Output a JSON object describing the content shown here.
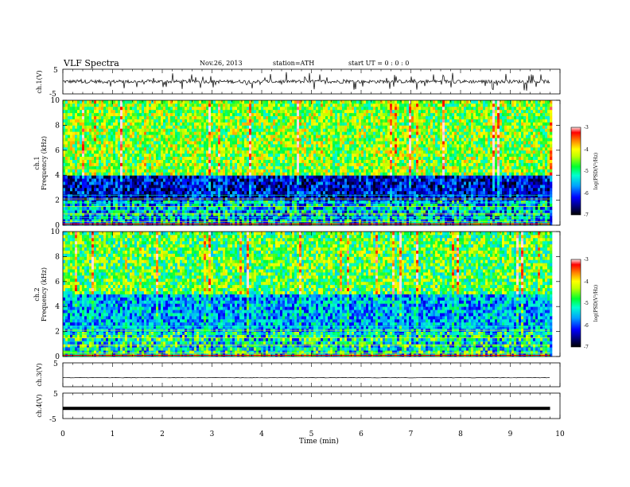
{
  "header": {
    "title": "VLF  Spectra",
    "date": "Nov.26, 2013",
    "station": "station=ATH",
    "start": "start  UT =   0 : 0 : 0"
  },
  "chart_data": [
    {
      "type": "line",
      "panel": "ch1-waveform",
      "ylabel": "ch.1(V)",
      "ylim": [
        -5,
        5
      ],
      "yticks": [
        "5",
        "-5"
      ],
      "xlim": [
        0,
        10
      ],
      "x_extent_min": [
        0,
        9.8
      ],
      "approx_level": 0,
      "noisy": true
    },
    {
      "type": "heatmap",
      "panel": "ch1-spectrogram",
      "ylabel_top": "ch.1",
      "ylabel": "Frequency  (kHz)",
      "ylim": [
        0,
        10
      ],
      "yticks": [
        "0",
        "2",
        "4",
        "6",
        "8",
        "10"
      ],
      "xlim": [
        0,
        10
      ],
      "x_extent_min": [
        0,
        9.8
      ],
      "colorbar": {
        "label": "log(PSD(V²/Hz)",
        "range": [
          -7,
          -3
        ],
        "ticks": [
          "-3",
          "-4",
          "-5",
          "-6",
          "-7"
        ]
      },
      "description_levels": {
        "above_4kHz": -4.5,
        "between_2_4kHz": -6.3,
        "below_2kHz": -5.5
      }
    },
    {
      "type": "heatmap",
      "panel": "ch2-spectrogram",
      "ylabel_top": "ch.2",
      "ylabel": "Frequency  (kHz)",
      "ylim": [
        0,
        10
      ],
      "yticks": [
        "0",
        "2",
        "4",
        "6",
        "8",
        "10"
      ],
      "xlim": [
        0,
        10
      ],
      "x_extent_min": [
        0,
        9.8
      ],
      "colorbar": {
        "label": "log(PSD(V²/Hz)",
        "range": [
          -7,
          -3
        ],
        "ticks": [
          "-3",
          "-4",
          "-5",
          "-6",
          "-7"
        ]
      },
      "description_levels": {
        "above_5kHz": -4.7,
        "between_2_5kHz": -5.6,
        "below_2kHz": -5.2
      }
    },
    {
      "type": "line",
      "panel": "ch3-waveform",
      "ylabel": "ch.3(V)",
      "ylim": [
        -5,
        5
      ],
      "yticks": [
        "5"
      ],
      "xlim": [
        0,
        10
      ],
      "x_extent_min": [
        0,
        9.8
      ],
      "approx_level": -1.2
    },
    {
      "type": "line",
      "panel": "ch4-waveform",
      "ylabel": "ch.4(V)",
      "ylim": [
        -5,
        5
      ],
      "yticks": [
        "5",
        "-5"
      ],
      "xlim": [
        0,
        10
      ],
      "x_extent_min": [
        0,
        9.8
      ],
      "approx_level": -1
    }
  ],
  "xaxis": {
    "label": "Time  (min)",
    "ticks": [
      "0",
      "1",
      "2",
      "3",
      "4",
      "5",
      "6",
      "7",
      "8",
      "9",
      "10"
    ]
  }
}
